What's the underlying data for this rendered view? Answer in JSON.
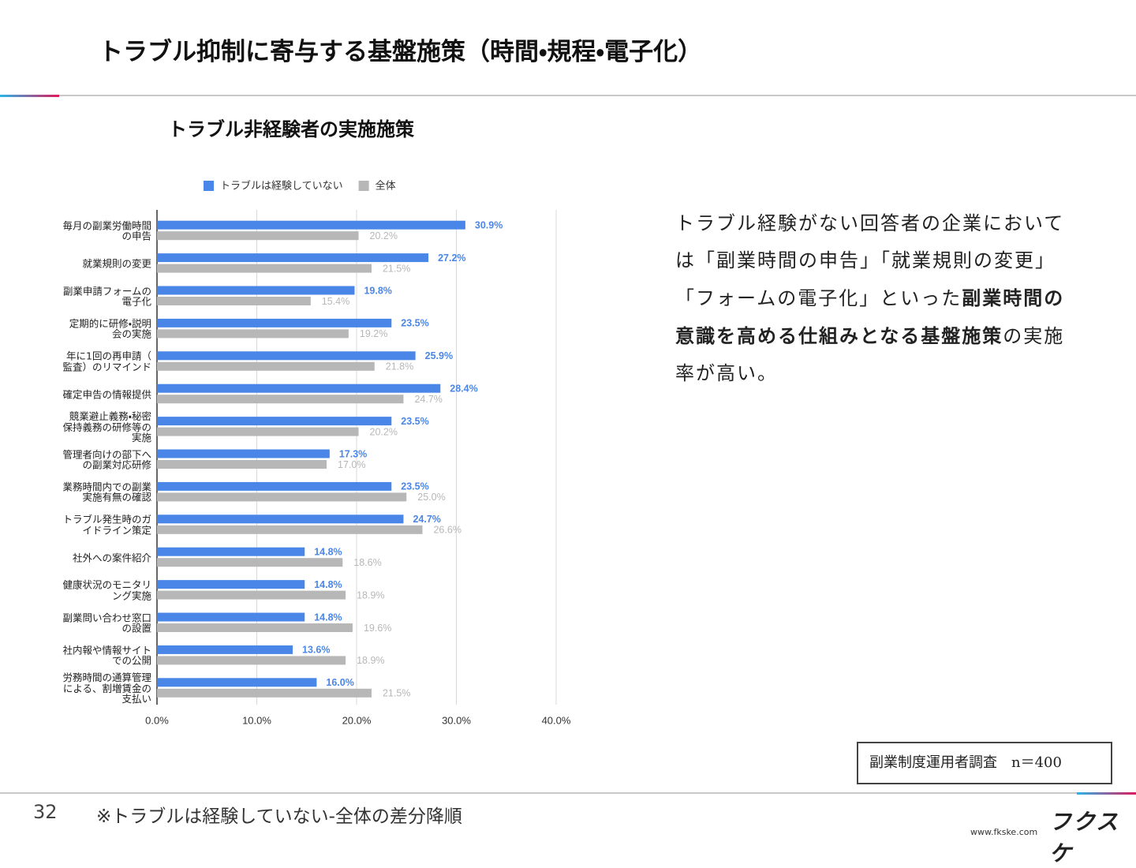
{
  "slide": {
    "title": "トラブル抑制に寄与する基盤施策（時間・規程・電子化）",
    "body": [
      {
        "text": "トラブル経験がない回答者の企業においては「副業時間の申告」「就業規則の変更」「フォームの電子化」といった",
        "bold": false
      },
      {
        "text": "副業時間の意識を高める仕組みとなる基盤施策",
        "bold": true
      },
      {
        "text": "の実施率が高い。",
        "bold": false
      }
    ],
    "source": "副業制度運用者調査　n＝400",
    "page_number": "32",
    "footnote": "※トラブルは経験していない-全体の差分降順",
    "logo": "フクスケ",
    "url": "www.fkske.com"
  },
  "chart_data": {
    "type": "hbar",
    "title": "トラブル非経験者の実施施策",
    "categories": [
      "毎月の副業労働時間\nの申告",
      "就業規則の変更",
      "副業申請フォームの\n電子化",
      "定期的に研修・説明\n会の実施",
      "年に1回の再申請（\n監査）のリマインド",
      "確定申告の情報提供",
      "競業避止義務・秘密\n保持義務の研修等の\n実施",
      "管理者向けの部下へ\nの副業対応研修",
      "業務時間内での副業\n実施有無の確認",
      "トラブル発生時のガ\nイドライン策定",
      "社外への案件紹介",
      "健康状況のモニタリ\nング実施",
      "副業問い合わせ窓口\nの設置",
      "社内報や情報サイト\nでの公開",
      "労務時間の通算管理\nによる、割増賃金の\n支払い"
    ],
    "series": [
      {
        "name": "トラブルは経験していない",
        "color": "#4a86e8",
        "values": [
          30.9,
          27.2,
          19.8,
          23.5,
          25.9,
          28.4,
          23.5,
          17.3,
          23.5,
          24.7,
          14.8,
          14.8,
          14.8,
          13.6,
          16.0
        ],
        "value_labels": [
          "30.9%",
          "27.2%",
          "19.8%",
          "23.5%",
          "25.9%",
          "28.4%",
          "23.5%",
          "17.3%",
          "23.5%",
          "24.7%",
          "14.8%",
          "14.8%",
          "14.8%",
          "13.6%",
          "16.0%"
        ]
      },
      {
        "name": "全体",
        "color": "#b7b7b7",
        "values": [
          20.2,
          21.5,
          15.4,
          19.2,
          21.8,
          24.7,
          20.2,
          17.0,
          25.0,
          26.6,
          18.6,
          18.9,
          19.6,
          18.9,
          21.5
        ],
        "value_labels": [
          "20.2%",
          "21.5%",
          "15.4%",
          "19.2%",
          "21.8%",
          "24.7%",
          "20.2%",
          "17.0%",
          "25.0%",
          "26.6%",
          "18.6%",
          "18.9%",
          "19.6%",
          "18.9%",
          "21.5%"
        ]
      }
    ],
    "xlim": [
      0,
      40
    ],
    "xticks": [
      {
        "value": 0,
        "label": "0.0%"
      },
      {
        "value": 10,
        "label": "10.0%"
      },
      {
        "value": 20,
        "label": "20.0%"
      },
      {
        "value": 30,
        "label": "30.0%"
      },
      {
        "value": 40,
        "label": "40.0%"
      }
    ],
    "grid": true,
    "legend": "top"
  }
}
